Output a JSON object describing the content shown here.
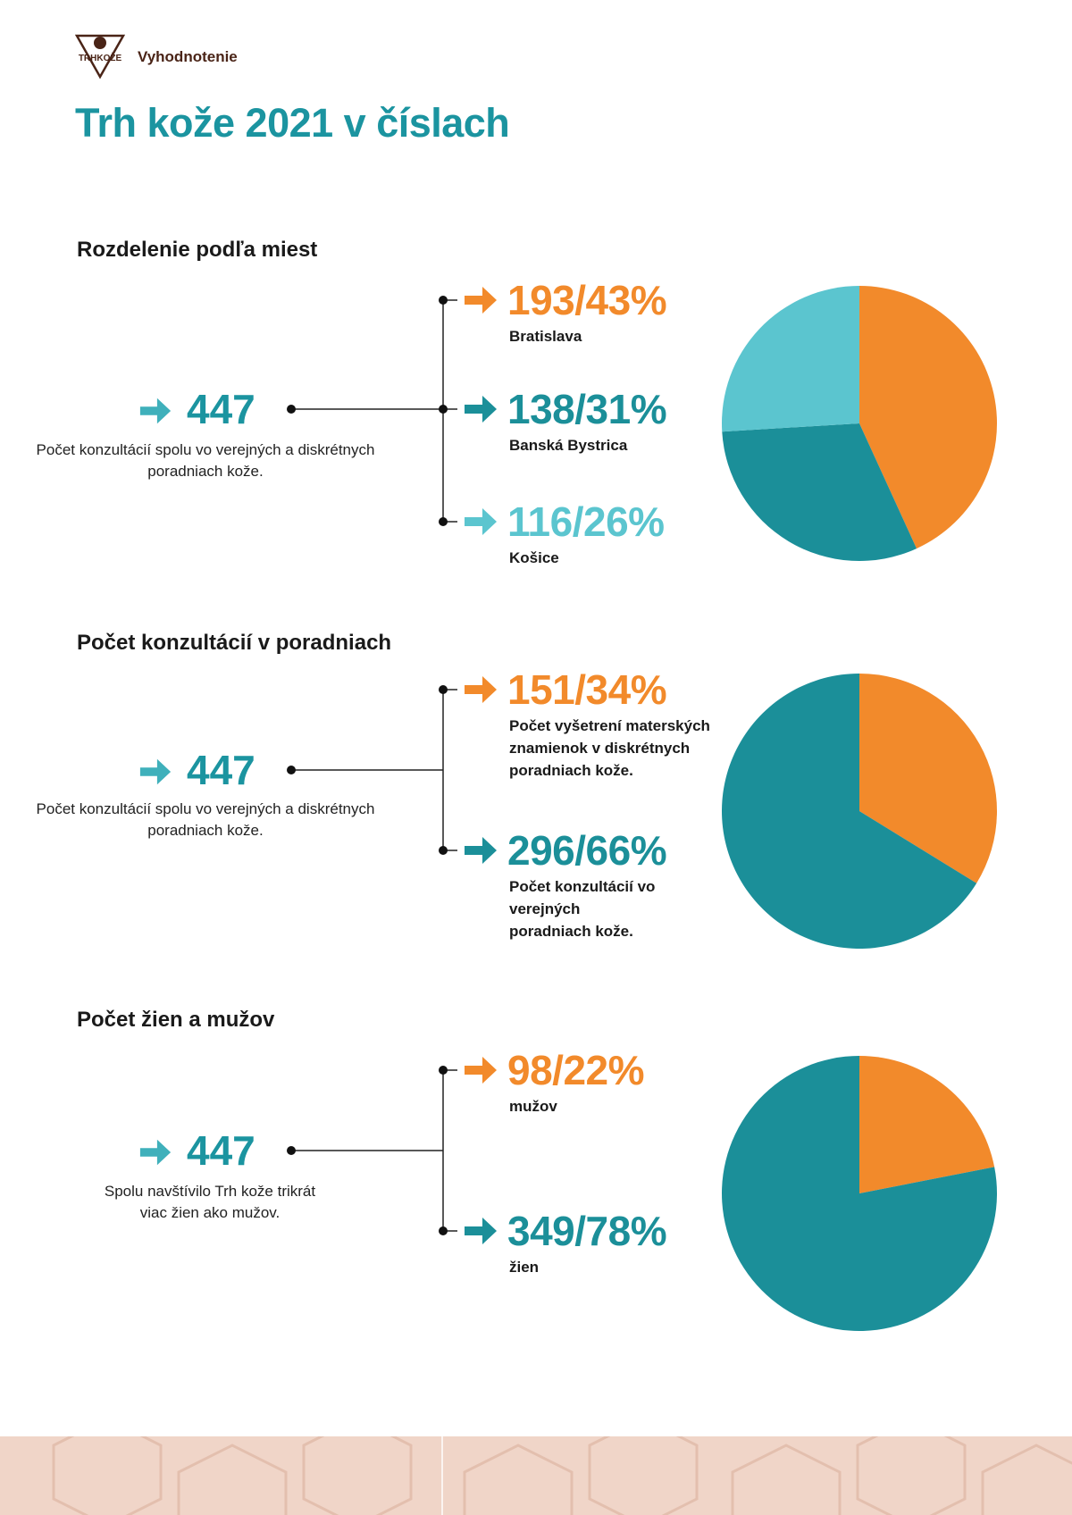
{
  "header": {
    "label": "Vyhodnotenie",
    "logo_text": "TRHKOŽE"
  },
  "title": "Trh kože 2021 v číslach",
  "colors": {
    "orange": "#f28a2b",
    "teal": "#1b8f99",
    "light_teal": "#5bc5cf",
    "brown": "#4a2417"
  },
  "sections": [
    {
      "heading": "Rozdelenie podľa miest",
      "total": "447",
      "total_desc": "Počet konzultácií spolu vo verejných a diskrétnych poradniach kože.",
      "items": [
        {
          "value": "193/43%",
          "label": "Bratislava",
          "color": "#f28a2b"
        },
        {
          "value": "138/31%",
          "label": "Banská Bystrica",
          "color": "#1b8f99"
        },
        {
          "value": "116/26%",
          "label": "Košice",
          "color": "#5bc5cf"
        }
      ]
    },
    {
      "heading": "Počet konzultácií v poradniach",
      "total": "447",
      "total_desc": "Počet konzultácií spolu vo verejných a diskrétnych poradniach kože.",
      "items": [
        {
          "value": "151/34%",
          "label": "Počet vyšetrení materských znamienok v diskrétnych poradniach kože.",
          "color": "#f28a2b"
        },
        {
          "value": "296/66%",
          "label": "Počet konzultácií vo verejných poradniach kože.",
          "color": "#1b8f99"
        }
      ]
    },
    {
      "heading": "Počet žien a mužov",
      "total": "447",
      "total_desc": "Spolu navštívilo Trh kože trikrát viac žien ako mužov.",
      "items": [
        {
          "value": "98/22%",
          "label": "mužov",
          "color": "#f28a2b"
        },
        {
          "value": "349/78%",
          "label": "žien",
          "color": "#1b8f99"
        }
      ]
    }
  ],
  "chart_data": [
    {
      "type": "pie",
      "categories": [
        "Bratislava",
        "Banská Bystrica",
        "Košice"
      ],
      "values": [
        193,
        138,
        116
      ],
      "percent": [
        43,
        31,
        26
      ],
      "colors": [
        "#f28a2b",
        "#1b8f99",
        "#5bc5cf"
      ]
    },
    {
      "type": "pie",
      "categories": [
        "Počet vyšetrení materských znamienok v diskrétnych poradniach kože.",
        "Počet konzultácií vo verejných poradniach kože."
      ],
      "values": [
        151,
        296
      ],
      "percent": [
        34,
        66
      ],
      "colors": [
        "#f28a2b",
        "#1b8f99"
      ]
    },
    {
      "type": "pie",
      "categories": [
        "mužov",
        "žien"
      ],
      "values": [
        98,
        349
      ],
      "percent": [
        22,
        78
      ],
      "colors": [
        "#f28a2b",
        "#1b8f99"
      ]
    }
  ]
}
